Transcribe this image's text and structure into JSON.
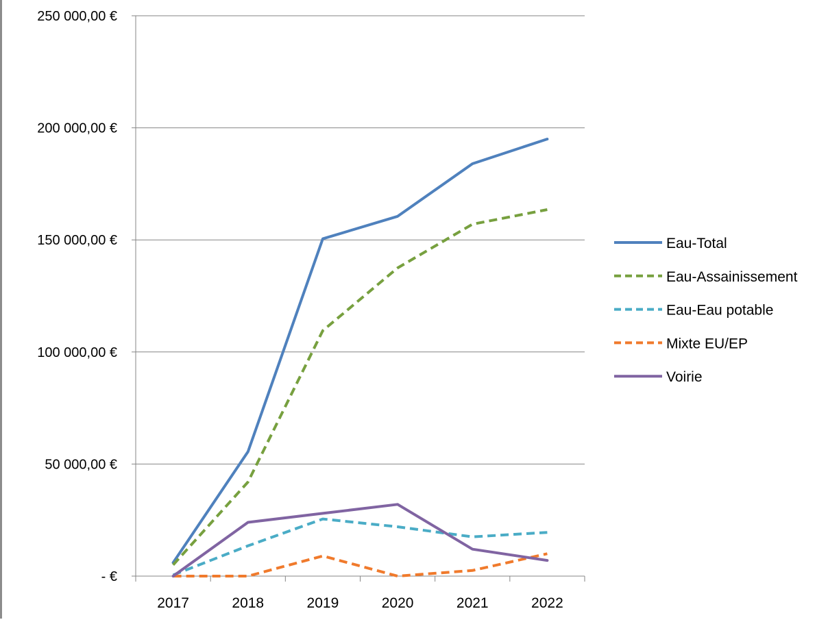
{
  "chart_data": {
    "type": "line",
    "categories": [
      "2017",
      "2018",
      "2019",
      "2020",
      "2021",
      "2022"
    ],
    "ylim": [
      0,
      250000
    ],
    "y_ticks": [
      {
        "value": 0,
        "label": "-   €"
      },
      {
        "value": 50000,
        "label": "50 000,00 €"
      },
      {
        "value": 100000,
        "label": "100 000,00 €"
      },
      {
        "value": 150000,
        "label": "150 000,00 €"
      },
      {
        "value": 200000,
        "label": "200 000,00 €"
      },
      {
        "value": 250000,
        "label": "250 000,00 €"
      }
    ],
    "grid": true,
    "legend_position": "right",
    "series": [
      {
        "name": "Eau-Total",
        "color": "#4f81bd",
        "dashed": false,
        "values": [
          6000,
          55500,
          150500,
          160500,
          184000,
          195000
        ]
      },
      {
        "name": "Eau-Assainissement",
        "color": "#77a03f",
        "dashed": true,
        "values": [
          5000,
          42000,
          109500,
          137500,
          157000,
          163500
        ]
      },
      {
        "name": "Eau-Eau potable",
        "color": "#4aacc6",
        "dashed": true,
        "values": [
          500,
          13500,
          25500,
          22000,
          17500,
          19500
        ]
      },
      {
        "name": "Mixte EU/EP",
        "color": "#f07a2c",
        "dashed": true,
        "values": [
          0,
          0,
          9000,
          0,
          2500,
          10000
        ]
      },
      {
        "name": "Voirie",
        "color": "#8064a2",
        "dashed": false,
        "values": [
          0,
          24000,
          28000,
          32000,
          12000,
          7000
        ]
      }
    ]
  }
}
